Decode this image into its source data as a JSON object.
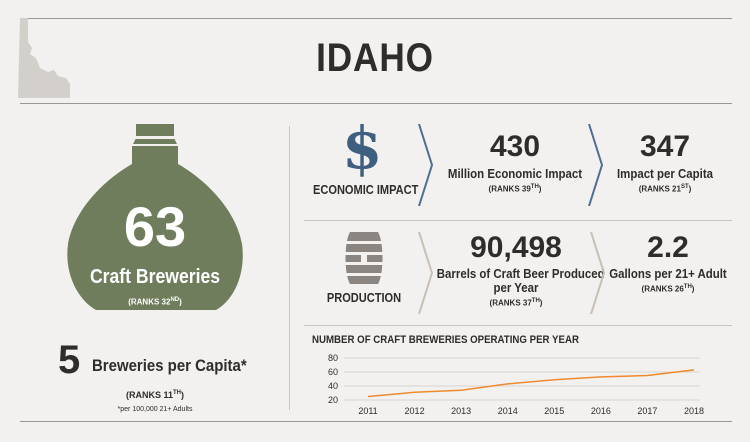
{
  "state": "IDAHO",
  "breweries": {
    "count": "63",
    "label": "Craft Breweries",
    "rank_prefix": "(RANKS 32",
    "rank_suffix": "ND",
    "rank_close": ")"
  },
  "per_capita": {
    "value": "5",
    "label": "Breweries per Capita*",
    "rank_prefix": "(RANKS 11",
    "rank_suffix": "TH",
    "rank_close": ")",
    "footnote": "*per 100,000 21+ Adults"
  },
  "economic_impact": {
    "section_label": "ECONOMIC IMPACT",
    "icon": "dollar-sign-icon",
    "metric1": {
      "value": "430",
      "label": "Million Economic Impact",
      "rank_prefix": "(RANKS 39",
      "rank_suffix": "TH",
      "rank_close": ")"
    },
    "metric2": {
      "value": "347",
      "label": "Impact per Capita",
      "rank_prefix": "(RANKS 21",
      "rank_suffix": "ST",
      "rank_close": ")"
    }
  },
  "production": {
    "section_label": "PRODUCTION",
    "icon": "barrel-icon",
    "metric1": {
      "value": "90,498",
      "label_line1": "Barrels of Craft Beer Produced",
      "label_line2": "per Year",
      "rank_prefix": "(RANKS 37",
      "rank_suffix": "TH",
      "rank_close": ")"
    },
    "metric2": {
      "value": "2.2",
      "label": "Gallons per 21+ Adult",
      "rank_prefix": "(RANKS 26",
      "rank_suffix": "TH",
      "rank_close": ")"
    }
  },
  "colors": {
    "flask_green": "#6f7d5c",
    "dollar_blue": "#3f5f80",
    "chevron_blue": "#4d6f93",
    "chevron_tan": "#c9bfb4",
    "barrel_gray": "#8a8580",
    "line_orange": "#f08a2c",
    "map_gray": "#d3d0cb"
  },
  "chart_data": {
    "type": "line",
    "title": "NUMBER OF CRAFT BREWERIES OPERATING PER YEAR",
    "x": [
      "2011",
      "2012",
      "2013",
      "2014",
      "2015",
      "2016",
      "2017",
      "2018"
    ],
    "series": [
      {
        "values": [
          25,
          31,
          34,
          43,
          49,
          53,
          55,
          63
        ]
      }
    ],
    "yticks": [
      20,
      40,
      60,
      80
    ],
    "ylim": [
      20,
      80
    ],
    "grid": true
  }
}
